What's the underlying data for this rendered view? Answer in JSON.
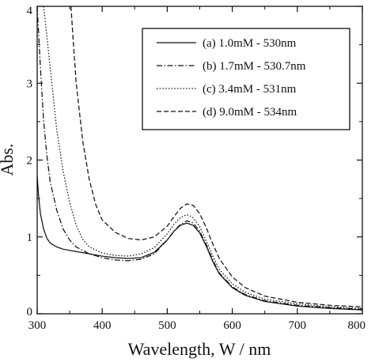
{
  "chart_data": {
    "type": "line",
    "title": "",
    "xlabel": "Wavelength, W / nm",
    "ylabel": "Abs.",
    "xlim": [
      300,
      800
    ],
    "ylim": [
      0,
      4
    ],
    "xticks": [
      300,
      400,
      500,
      600,
      700,
      800
    ],
    "yticks": [
      0,
      1,
      2,
      3,
      4
    ],
    "x_minor_step": 50,
    "y_minor_step": 0.5,
    "grid": false,
    "legend_position": "top-right",
    "series": [
      {
        "name": "(a) 1.0mM - 530nm",
        "dash": "solid",
        "points": [
          [
            300,
            1.8
          ],
          [
            302,
            1.55
          ],
          [
            305,
            1.3
          ],
          [
            310,
            1.1
          ],
          [
            315,
            0.98
          ],
          [
            320,
            0.92
          ],
          [
            330,
            0.87
          ],
          [
            340,
            0.84
          ],
          [
            360,
            0.81
          ],
          [
            380,
            0.78
          ],
          [
            400,
            0.75
          ],
          [
            420,
            0.73
          ],
          [
            440,
            0.72
          ],
          [
            460,
            0.73
          ],
          [
            480,
            0.8
          ],
          [
            500,
            0.96
          ],
          [
            510,
            1.07
          ],
          [
            520,
            1.15
          ],
          [
            530,
            1.18
          ],
          [
            540,
            1.15
          ],
          [
            550,
            1.05
          ],
          [
            560,
            0.88
          ],
          [
            570,
            0.68
          ],
          [
            580,
            0.52
          ],
          [
            600,
            0.34
          ],
          [
            620,
            0.24
          ],
          [
            650,
            0.16
          ],
          [
            700,
            0.1
          ],
          [
            750,
            0.07
          ],
          [
            800,
            0.05
          ]
        ]
      },
      {
        "name": "(b) 1.7mM - 530.7nm",
        "dash": "dashdot",
        "points": [
          [
            300,
            4.0
          ],
          [
            305,
            3.2
          ],
          [
            310,
            2.5
          ],
          [
            315,
            2.05
          ],
          [
            320,
            1.72
          ],
          [
            330,
            1.35
          ],
          [
            340,
            1.1
          ],
          [
            350,
            0.96
          ],
          [
            360,
            0.87
          ],
          [
            380,
            0.78
          ],
          [
            400,
            0.73
          ],
          [
            420,
            0.7
          ],
          [
            440,
            0.69
          ],
          [
            460,
            0.71
          ],
          [
            480,
            0.78
          ],
          [
            500,
            0.96
          ],
          [
            510,
            1.07
          ],
          [
            520,
            1.16
          ],
          [
            530,
            1.21
          ],
          [
            540,
            1.18
          ],
          [
            550,
            1.07
          ],
          [
            560,
            0.9
          ],
          [
            570,
            0.7
          ],
          [
            580,
            0.53
          ],
          [
            600,
            0.35
          ],
          [
            620,
            0.25
          ],
          [
            650,
            0.17
          ],
          [
            700,
            0.11
          ],
          [
            750,
            0.08
          ],
          [
            800,
            0.06
          ]
        ]
      },
      {
        "name": "(c) 3.4mM - 531nm",
        "dash": "dotted",
        "points": [
          [
            310,
            4.0
          ],
          [
            320,
            3.2
          ],
          [
            330,
            2.4
          ],
          [
            340,
            1.85
          ],
          [
            350,
            1.45
          ],
          [
            360,
            1.15
          ],
          [
            370,
            0.97
          ],
          [
            380,
            0.87
          ],
          [
            400,
            0.79
          ],
          [
            420,
            0.76
          ],
          [
            440,
            0.75
          ],
          [
            460,
            0.78
          ],
          [
            480,
            0.86
          ],
          [
            500,
            1.04
          ],
          [
            510,
            1.16
          ],
          [
            520,
            1.25
          ],
          [
            530,
            1.29
          ],
          [
            540,
            1.25
          ],
          [
            550,
            1.13
          ],
          [
            560,
            0.95
          ],
          [
            570,
            0.75
          ],
          [
            580,
            0.58
          ],
          [
            600,
            0.39
          ],
          [
            620,
            0.28
          ],
          [
            650,
            0.19
          ],
          [
            700,
            0.13
          ],
          [
            750,
            0.09
          ],
          [
            800,
            0.07
          ]
        ]
      },
      {
        "name": "(d) 9.0mM - 534nm",
        "dash": "dashed",
        "points": [
          [
            352,
            4.0
          ],
          [
            355,
            3.6
          ],
          [
            360,
            3.0
          ],
          [
            370,
            2.25
          ],
          [
            380,
            1.75
          ],
          [
            390,
            1.42
          ],
          [
            400,
            1.22
          ],
          [
            420,
            1.06
          ],
          [
            440,
            0.98
          ],
          [
            460,
            0.96
          ],
          [
            480,
            1.0
          ],
          [
            500,
            1.14
          ],
          [
            510,
            1.26
          ],
          [
            520,
            1.37
          ],
          [
            530,
            1.43
          ],
          [
            540,
            1.41
          ],
          [
            550,
            1.3
          ],
          [
            560,
            1.12
          ],
          [
            570,
            0.91
          ],
          [
            580,
            0.72
          ],
          [
            600,
            0.48
          ],
          [
            620,
            0.34
          ],
          [
            650,
            0.23
          ],
          [
            700,
            0.15
          ],
          [
            750,
            0.11
          ],
          [
            800,
            0.09
          ]
        ]
      }
    ]
  }
}
